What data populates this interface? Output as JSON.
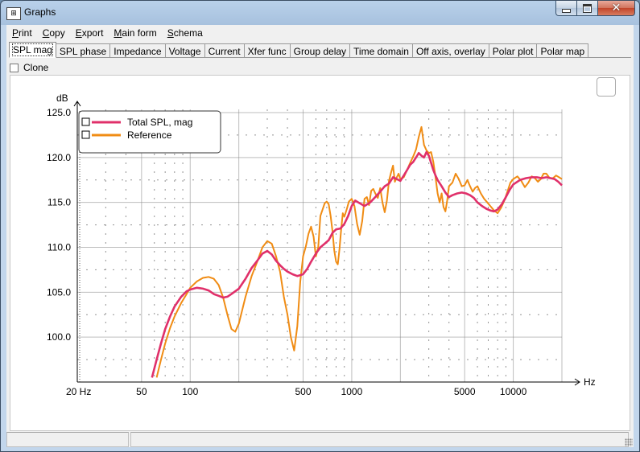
{
  "window": {
    "title": "Graphs"
  },
  "menu": [
    {
      "label": "Print",
      "key": "P",
      "rest": "rint"
    },
    {
      "label": "Copy",
      "key": "C",
      "rest": "opy"
    },
    {
      "label": "Export",
      "key": "E",
      "rest": "xport"
    },
    {
      "label": "Main form",
      "key": "M",
      "rest": "ain form"
    },
    {
      "label": "Schema",
      "key": "S",
      "rest": "chema"
    }
  ],
  "tabs": [
    "SPL mag",
    "SPL phase",
    "Impedance",
    "Voltage",
    "Current",
    "Xfer func",
    "Group delay",
    "Time domain",
    "Off axis, overlay",
    "Polar plot",
    "Polar map"
  ],
  "active_tab": 0,
  "clone_label": "Clone",
  "chart_data": {
    "type": "line",
    "xscale": "log",
    "xlim": [
      20,
      20000
    ],
    "ylim": [
      95,
      125
    ],
    "ylabel": "dB",
    "xlabel": "Hz",
    "x_ticks": [
      20,
      50,
      100,
      500,
      1000,
      5000,
      10000
    ],
    "x_tick_labels": [
      "20 Hz",
      "50",
      "100",
      "500",
      "1000",
      "5000",
      "10000"
    ],
    "y_ticks": [
      100,
      105,
      110,
      115,
      120,
      125
    ],
    "y_tick_labels": [
      "100.0",
      "105.0",
      "110.0",
      "115.0",
      "120.0",
      "125.0"
    ],
    "grid": true,
    "legend_position": "top-left",
    "series": [
      {
        "name": "Total SPL, mag",
        "color": "#e0306a",
        "points": [
          [
            58,
            95.5
          ],
          [
            62,
            97.5
          ],
          [
            66,
            99.3
          ],
          [
            70,
            100.9
          ],
          [
            75,
            102.3
          ],
          [
            80,
            103.4
          ],
          [
            88,
            104.5
          ],
          [
            95,
            105.1
          ],
          [
            100,
            105.3
          ],
          [
            110,
            105.5
          ],
          [
            120,
            105.4
          ],
          [
            130,
            105.2
          ],
          [
            140,
            104.8
          ],
          [
            150,
            104.6
          ],
          [
            160,
            104.4
          ],
          [
            170,
            104.5
          ],
          [
            180,
            104.8
          ],
          [
            200,
            105.4
          ],
          [
            220,
            106.5
          ],
          [
            240,
            107.7
          ],
          [
            260,
            108.5
          ],
          [
            280,
            109.3
          ],
          [
            300,
            109.6
          ],
          [
            320,
            109.2
          ],
          [
            340,
            108.5
          ],
          [
            360,
            108.0
          ],
          [
            380,
            107.6
          ],
          [
            400,
            107.3
          ],
          [
            430,
            107.0
          ],
          [
            460,
            106.8
          ],
          [
            500,
            107.0
          ],
          [
            530,
            107.6
          ],
          [
            560,
            108.4
          ],
          [
            600,
            109.3
          ],
          [
            640,
            110.0
          ],
          [
            680,
            110.4
          ],
          [
            720,
            110.8
          ],
          [
            760,
            111.6
          ],
          [
            800,
            112.0
          ],
          [
            850,
            112.1
          ],
          [
            900,
            112.6
          ],
          [
            950,
            113.5
          ],
          [
            1000,
            114.6
          ],
          [
            1050,
            115.2
          ],
          [
            1100,
            115.0
          ],
          [
            1200,
            114.6
          ],
          [
            1300,
            115.0
          ],
          [
            1400,
            115.6
          ],
          [
            1500,
            116.2
          ],
          [
            1600,
            116.8
          ],
          [
            1700,
            117.1
          ],
          [
            1800,
            117.8
          ],
          [
            1900,
            117.6
          ],
          [
            2000,
            117.4
          ],
          [
            2100,
            118.0
          ],
          [
            2200,
            118.6
          ],
          [
            2300,
            119.2
          ],
          [
            2400,
            119.5
          ],
          [
            2500,
            120.0
          ],
          [
            2600,
            120.5
          ],
          [
            2700,
            120.2
          ],
          [
            2800,
            120.0
          ],
          [
            2900,
            120.6
          ],
          [
            3000,
            120.2
          ],
          [
            3100,
            119.4
          ],
          [
            3200,
            118.6
          ],
          [
            3300,
            118.0
          ],
          [
            3400,
            117.5
          ],
          [
            3600,
            116.8
          ],
          [
            3800,
            116.1
          ],
          [
            4000,
            115.6
          ],
          [
            4200,
            115.8
          ],
          [
            4500,
            116.0
          ],
          [
            4800,
            116.1
          ],
          [
            5100,
            116.0
          ],
          [
            5400,
            115.8
          ],
          [
            5700,
            115.5
          ],
          [
            6000,
            115.0
          ],
          [
            6400,
            114.6
          ],
          [
            6800,
            114.3
          ],
          [
            7200,
            114.1
          ],
          [
            7600,
            114.0
          ],
          [
            8000,
            114.2
          ],
          [
            8500,
            114.8
          ],
          [
            9000,
            115.6
          ],
          [
            9500,
            116.4
          ],
          [
            10000,
            117.0
          ],
          [
            11000,
            117.5
          ],
          [
            12000,
            117.7
          ],
          [
            13000,
            117.8
          ],
          [
            14000,
            117.8
          ],
          [
            15000,
            117.7
          ],
          [
            16000,
            117.8
          ],
          [
            17000,
            117.7
          ],
          [
            18000,
            117.6
          ],
          [
            19000,
            117.3
          ],
          [
            20000,
            116.9
          ]
        ]
      },
      {
        "name": "Reference",
        "color": "#f08c14",
        "points": [
          [
            62,
            95.5
          ],
          [
            66,
            97.5
          ],
          [
            70,
            99.3
          ],
          [
            75,
            101.0
          ],
          [
            80,
            102.3
          ],
          [
            88,
            103.8
          ],
          [
            95,
            104.8
          ],
          [
            100,
            105.5
          ],
          [
            110,
            106.2
          ],
          [
            120,
            106.6
          ],
          [
            130,
            106.7
          ],
          [
            140,
            106.5
          ],
          [
            150,
            105.8
          ],
          [
            160,
            104.4
          ],
          [
            170,
            102.5
          ],
          [
            180,
            100.9
          ],
          [
            190,
            100.6
          ],
          [
            200,
            101.5
          ],
          [
            220,
            104.5
          ],
          [
            240,
            106.8
          ],
          [
            260,
            108.4
          ],
          [
            280,
            110.0
          ],
          [
            300,
            110.7
          ],
          [
            320,
            110.4
          ],
          [
            340,
            109.0
          ],
          [
            360,
            107.3
          ],
          [
            380,
            104.5
          ],
          [
            400,
            102.5
          ],
          [
            420,
            100.0
          ],
          [
            440,
            98.5
          ],
          [
            460,
            101.2
          ],
          [
            480,
            106.2
          ],
          [
            500,
            109.0
          ],
          [
            520,
            110.1
          ],
          [
            540,
            111.5
          ],
          [
            560,
            112.3
          ],
          [
            580,
            111.2
          ],
          [
            600,
            109.0
          ],
          [
            620,
            110.0
          ],
          [
            640,
            113.5
          ],
          [
            660,
            114.2
          ],
          [
            680,
            114.9
          ],
          [
            700,
            115.1
          ],
          [
            720,
            114.8
          ],
          [
            740,
            113.5
          ],
          [
            760,
            111.8
          ],
          [
            780,
            109.6
          ],
          [
            800,
            108.4
          ],
          [
            820,
            108.1
          ],
          [
            840,
            109.8
          ],
          [
            860,
            112.0
          ],
          [
            880,
            113.8
          ],
          [
            900,
            113.4
          ],
          [
            930,
            114.2
          ],
          [
            960,
            115.1
          ],
          [
            1000,
            115.4
          ],
          [
            1040,
            114.6
          ],
          [
            1080,
            112.6
          ],
          [
            1120,
            111.4
          ],
          [
            1160,
            112.9
          ],
          [
            1200,
            115.4
          ],
          [
            1240,
            115.6
          ],
          [
            1280,
            114.7
          ],
          [
            1320,
            116.3
          ],
          [
            1360,
            116.5
          ],
          [
            1400,
            116.0
          ],
          [
            1450,
            115.5
          ],
          [
            1500,
            116.6
          ],
          [
            1550,
            115.0
          ],
          [
            1600,
            113.9
          ],
          [
            1650,
            115.2
          ],
          [
            1700,
            117.4
          ],
          [
            1750,
            118.3
          ],
          [
            1800,
            119.1
          ],
          [
            1850,
            117.3
          ],
          [
            1900,
            117.8
          ],
          [
            1950,
            118.2
          ],
          [
            2000,
            117.6
          ],
          [
            2100,
            117.8
          ],
          [
            2200,
            118.6
          ],
          [
            2300,
            119.4
          ],
          [
            2400,
            120.1
          ],
          [
            2500,
            120.9
          ],
          [
            2600,
            122.3
          ],
          [
            2700,
            123.4
          ],
          [
            2800,
            121.4
          ],
          [
            2900,
            120.8
          ],
          [
            3000,
            120.5
          ],
          [
            3100,
            120.6
          ],
          [
            3200,
            119.5
          ],
          [
            3300,
            117.8
          ],
          [
            3400,
            116.0
          ],
          [
            3500,
            115.0
          ],
          [
            3600,
            116.0
          ],
          [
            3700,
            114.5
          ],
          [
            3800,
            114.0
          ],
          [
            3900,
            115.2
          ],
          [
            4000,
            116.8
          ],
          [
            4200,
            117.2
          ],
          [
            4400,
            118.2
          ],
          [
            4600,
            117.6
          ],
          [
            4800,
            116.8
          ],
          [
            5000,
            116.9
          ],
          [
            5200,
            117.5
          ],
          [
            5400,
            116.8
          ],
          [
            5600,
            116.2
          ],
          [
            5800,
            116.6
          ],
          [
            6000,
            116.8
          ],
          [
            6300,
            116.0
          ],
          [
            6600,
            115.4
          ],
          [
            6900,
            115.0
          ],
          [
            7200,
            114.6
          ],
          [
            7600,
            114.1
          ],
          [
            8000,
            113.8
          ],
          [
            8400,
            114.4
          ],
          [
            8800,
            115.2
          ],
          [
            9200,
            116.2
          ],
          [
            9600,
            117.2
          ],
          [
            10000,
            117.6
          ],
          [
            10600,
            117.9
          ],
          [
            11200,
            117.4
          ],
          [
            11800,
            116.7
          ],
          [
            12400,
            117.2
          ],
          [
            13000,
            117.9
          ],
          [
            13600,
            117.7
          ],
          [
            14200,
            117.3
          ],
          [
            14800,
            117.6
          ],
          [
            15400,
            118.2
          ],
          [
            16000,
            118.2
          ],
          [
            16800,
            117.7
          ],
          [
            17600,
            117.7
          ],
          [
            18400,
            118.0
          ],
          [
            19200,
            117.8
          ],
          [
            20000,
            117.6
          ]
        ]
      }
    ]
  },
  "colors": {
    "grid": "#888888",
    "axis": "#000000",
    "plot_bg": "#ffffff"
  }
}
